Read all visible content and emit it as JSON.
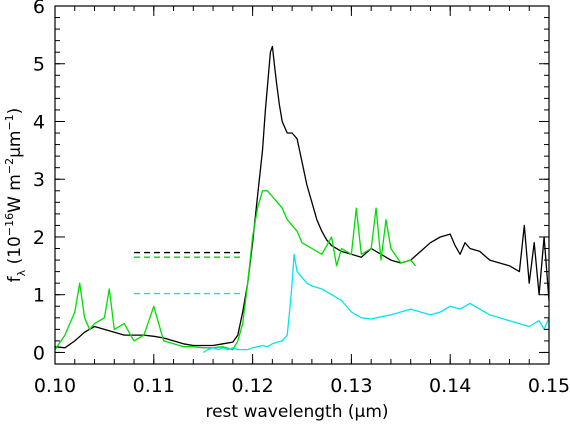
{
  "chart_data": {
    "type": "line",
    "xlabel": "rest wavelength (μm)",
    "ylabel": {
      "pre": "f",
      "sub": "λ",
      "mid1": " (10",
      "sup1": "−16",
      "mid2": "W m",
      "sup2": "−2",
      "mid3": "μm",
      "sup3": "−1",
      "post": ")"
    },
    "xlim": [
      0.1,
      0.15
    ],
    "ylim": [
      -0.2,
      6
    ],
    "xticks": [
      {
        "value": 0.1,
        "label": "0.10"
      },
      {
        "value": 0.11,
        "label": "0.11"
      },
      {
        "value": 0.12,
        "label": "0.12"
      },
      {
        "value": 0.13,
        "label": "0.13"
      },
      {
        "value": 0.14,
        "label": "0.14"
      },
      {
        "value": 0.15,
        "label": "0.15"
      }
    ],
    "yticks": [
      {
        "value": 0,
        "label": "0"
      },
      {
        "value": 1,
        "label": "1"
      },
      {
        "value": 2,
        "label": "2"
      },
      {
        "value": 3,
        "label": "3"
      },
      {
        "value": 4,
        "label": "4"
      },
      {
        "value": 5,
        "label": "5"
      },
      {
        "value": 6,
        "label": "6"
      }
    ],
    "grid": false,
    "series": [
      {
        "color": "#000000",
        "x": [
          0.1,
          0.101,
          0.102,
          0.103,
          0.104,
          0.105,
          0.106,
          0.107,
          0.108,
          0.109,
          0.11,
          0.111,
          0.112,
          0.113,
          0.114,
          0.115,
          0.116,
          0.117,
          0.118,
          0.1185,
          0.119,
          0.1195,
          0.12,
          0.1205,
          0.121,
          0.1213,
          0.1216,
          0.1218,
          0.122,
          0.1222,
          0.1224,
          0.1227,
          0.123,
          0.1235,
          0.124,
          0.1245,
          0.125,
          0.1255,
          0.126,
          0.1265,
          0.127,
          0.1275,
          0.128,
          0.129,
          0.13,
          0.131,
          0.132,
          0.133,
          0.134,
          0.135,
          0.136,
          0.137,
          0.138,
          0.139,
          0.14,
          0.1405,
          0.141,
          0.1415,
          0.142,
          0.143,
          0.144,
          0.145,
          0.146,
          0.147,
          0.1475,
          0.148,
          0.1485,
          0.149,
          0.1495,
          0.15
        ],
        "y": [
          0.1,
          0.08,
          0.2,
          0.35,
          0.45,
          0.4,
          0.35,
          0.3,
          0.3,
          0.3,
          0.28,
          0.25,
          0.2,
          0.15,
          0.12,
          0.12,
          0.12,
          0.15,
          0.18,
          0.3,
          0.7,
          1.2,
          1.9,
          2.7,
          3.5,
          4.2,
          4.8,
          5.2,
          5.3,
          5.0,
          4.7,
          4.3,
          4.0,
          3.8,
          3.8,
          3.7,
          3.3,
          2.9,
          2.6,
          2.3,
          2.1,
          1.95,
          1.85,
          1.75,
          1.7,
          1.65,
          1.8,
          1.7,
          1.6,
          1.55,
          1.6,
          1.75,
          1.9,
          2.0,
          2.05,
          1.85,
          1.7,
          1.9,
          1.8,
          1.75,
          1.6,
          1.55,
          1.5,
          1.4,
          2.2,
          1.2,
          1.9,
          1.0,
          2.0,
          0.9
        ]
      },
      {
        "color": "#00dd00",
        "x": [
          0.1,
          0.101,
          0.102,
          0.1025,
          0.103,
          0.1035,
          0.104,
          0.105,
          0.1055,
          0.106,
          0.107,
          0.108,
          0.109,
          0.11,
          0.1105,
          0.111,
          0.112,
          0.113,
          0.114,
          0.115,
          0.116,
          0.117,
          0.118,
          0.1185,
          0.119,
          0.1195,
          0.12,
          0.1205,
          0.121,
          0.1215,
          0.122,
          0.1225,
          0.123,
          0.1235,
          0.124,
          0.1245,
          0.125,
          0.126,
          0.127,
          0.128,
          0.1285,
          0.129,
          0.13,
          0.1305,
          0.131,
          0.132,
          0.1325,
          0.133,
          0.1335,
          0.134,
          0.135,
          0.136,
          0.1365
        ],
        "y": [
          0.05,
          0.3,
          0.7,
          1.2,
          0.6,
          0.4,
          0.5,
          0.6,
          1.1,
          0.4,
          0.5,
          0.2,
          0.3,
          0.8,
          0.5,
          0.2,
          0.15,
          0.1,
          0.1,
          0.08,
          0.08,
          0.1,
          0.05,
          0.2,
          0.5,
          1.2,
          2.0,
          2.5,
          2.8,
          2.8,
          2.7,
          2.6,
          2.5,
          2.3,
          2.2,
          2.1,
          1.9,
          1.8,
          1.7,
          2.0,
          1.5,
          1.8,
          1.7,
          2.5,
          1.7,
          1.8,
          2.5,
          1.6,
          2.3,
          1.8,
          1.55,
          1.6,
          1.5
        ]
      },
      {
        "color": "#00e5ee",
        "x": [
          0.115,
          0.1155,
          0.116,
          0.1165,
          0.117,
          0.1175,
          0.118,
          0.1185,
          0.119,
          0.1195,
          0.12,
          0.1205,
          0.121,
          0.1215,
          0.122,
          0.1225,
          0.123,
          0.1235,
          0.1238,
          0.124,
          0.1242,
          0.1245,
          0.125,
          0.1255,
          0.126,
          0.127,
          0.128,
          0.129,
          0.13,
          0.131,
          0.132,
          0.133,
          0.134,
          0.135,
          0.136,
          0.137,
          0.138,
          0.139,
          0.14,
          0.141,
          0.142,
          0.143,
          0.144,
          0.145,
          0.146,
          0.147,
          0.148,
          0.149,
          0.1495,
          0.15
        ],
        "y": [
          0.0,
          0.05,
          0.08,
          0.05,
          0.08,
          0.05,
          0.08,
          0.05,
          0.05,
          0.05,
          0.08,
          0.1,
          0.12,
          0.1,
          0.15,
          0.18,
          0.2,
          0.3,
          0.8,
          1.2,
          1.7,
          1.4,
          1.3,
          1.2,
          1.15,
          1.1,
          1.0,
          0.9,
          0.7,
          0.6,
          0.58,
          0.62,
          0.65,
          0.7,
          0.75,
          0.7,
          0.65,
          0.7,
          0.8,
          0.75,
          0.85,
          0.75,
          0.65,
          0.6,
          0.55,
          0.5,
          0.45,
          0.55,
          0.4,
          0.6
        ]
      }
    ],
    "reference_lines": [
      {
        "color": "#000000",
        "y": 1.73,
        "x_start": 0.108,
        "x_end": 0.119
      },
      {
        "color": "#00dd00",
        "y": 1.65,
        "x_start": 0.108,
        "x_end": 0.119
      },
      {
        "color": "#00e5ee",
        "y": 1.02,
        "x_start": 0.108,
        "x_end": 0.119
      }
    ]
  }
}
